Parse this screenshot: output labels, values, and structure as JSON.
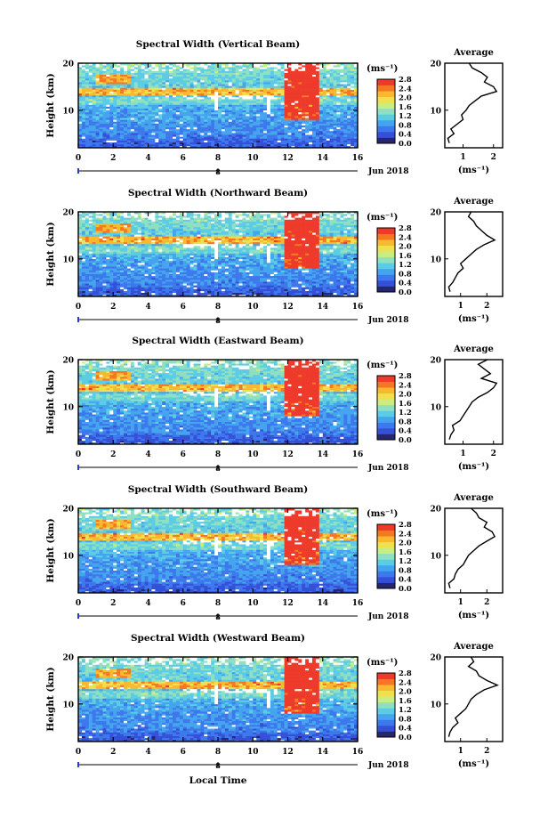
{
  "figure": {
    "unit_label": "(ms⁻¹)",
    "date_label": "Jun 2018",
    "xlabel": "Local Time",
    "avg_title": "Average",
    "ylabel": "Height (km)",
    "sub_tick_label": "8"
  },
  "colors": {
    "colormap": [
      "#26266e",
      "#3550d8",
      "#3d78ec",
      "#45a4ee",
      "#5ccce6",
      "#8fe0c0",
      "#c8ee82",
      "#f0e050",
      "#f8b830",
      "#f47824",
      "#ee3a2a"
    ],
    "saturation": "#ee3a2a",
    "no_data": "#ffffff"
  },
  "chart_data": [
    {
      "type": "heatmap",
      "title": "Spectral Width (Vertical Beam)",
      "x_ticks": [
        "0",
        "2",
        "4",
        "6",
        "8",
        "10",
        "12",
        "14",
        "16"
      ],
      "y_ticks": [
        "10",
        "20"
      ],
      "xlim": [
        0,
        16
      ],
      "ylim": [
        2,
        20
      ],
      "colorbar": {
        "ticks": [
          "2.8",
          "2.4",
          "2.0",
          "1.6",
          "1.2",
          "0.8",
          "0.4",
          "0.0"
        ],
        "range": [
          0,
          2.8
        ]
      },
      "average": {
        "x_ticks": [
          "1",
          "2"
        ],
        "xlim": [
          0.4,
          2.3
        ],
        "height": [
          3,
          4,
          5,
          6,
          7,
          8,
          9,
          10,
          11,
          12,
          13,
          14,
          15,
          16,
          17,
          18,
          19,
          20
        ],
        "value": [
          0.55,
          0.5,
          0.7,
          0.6,
          0.8,
          1.0,
          0.95,
          1.1,
          1.2,
          1.4,
          1.6,
          2.1,
          2.0,
          1.7,
          1.8,
          1.6,
          1.3,
          1.2
        ]
      }
    },
    {
      "type": "heatmap",
      "title": "Spectral Width (Northward Beam)",
      "x_ticks": [
        "0",
        "2",
        "4",
        "6",
        "8",
        "10",
        "12",
        "14",
        "16"
      ],
      "y_ticks": [
        "10",
        "20"
      ],
      "xlim": [
        0,
        16
      ],
      "ylim": [
        2,
        20
      ],
      "colorbar": {
        "ticks": [
          "2.8",
          "2.4",
          "2.0",
          "1.6",
          "1.2",
          "0.8",
          "0.4",
          "0.0"
        ],
        "range": [
          0,
          2.8
        ]
      },
      "average": {
        "x_ticks": [
          "1",
          "2"
        ],
        "xlim": [
          0.4,
          2.6
        ],
        "height": [
          3,
          4,
          5,
          6,
          7,
          8,
          9,
          10,
          11,
          12,
          13,
          14,
          15,
          16,
          17,
          18,
          19,
          20
        ],
        "value": [
          0.6,
          0.55,
          0.7,
          0.8,
          0.9,
          1.1,
          1.0,
          1.2,
          1.4,
          1.6,
          1.9,
          2.3,
          2.0,
          1.8,
          1.6,
          1.5,
          1.3,
          1.4
        ]
      }
    },
    {
      "type": "heatmap",
      "title": "Spectral Width (Eastward Beam)",
      "x_ticks": [
        "0",
        "2",
        "4",
        "6",
        "8",
        "10",
        "12",
        "14",
        "16"
      ],
      "y_ticks": [
        "10",
        "20"
      ],
      "xlim": [
        0,
        16
      ],
      "ylim": [
        2,
        20
      ],
      "colorbar": {
        "ticks": [
          "2.8",
          "2.4",
          "2.0",
          "1.6",
          "1.2",
          "0.8",
          "0.4",
          "0.0"
        ],
        "range": [
          0,
          2.8
        ]
      },
      "average": {
        "x_ticks": [
          "1",
          "2"
        ],
        "xlim": [
          0.4,
          2.3
        ],
        "height": [
          3,
          4,
          5,
          6,
          7,
          8,
          9,
          10,
          11,
          12,
          13,
          14,
          15,
          16,
          17,
          18,
          19,
          20
        ],
        "value": [
          0.55,
          0.6,
          0.7,
          0.65,
          0.9,
          1.0,
          1.1,
          1.2,
          1.3,
          1.5,
          1.8,
          2.0,
          2.1,
          1.6,
          1.9,
          1.7,
          1.5,
          1.8
        ]
      }
    },
    {
      "type": "heatmap",
      "title": "Spectral Width (Southward Beam)",
      "x_ticks": [
        "0",
        "2",
        "4",
        "6",
        "8",
        "10",
        "12",
        "14",
        "16"
      ],
      "y_ticks": [
        "10",
        "20"
      ],
      "xlim": [
        0,
        16
      ],
      "ylim": [
        2,
        20
      ],
      "colorbar": {
        "ticks": [
          "2.8",
          "2.4",
          "2.0",
          "1.6",
          "1.2",
          "0.8",
          "0.4",
          "0.0"
        ],
        "range": [
          0,
          2.8
        ]
      },
      "average": {
        "x_ticks": [
          "1",
          "2"
        ],
        "xlim": [
          0.4,
          2.6
        ],
        "height": [
          3,
          4,
          5,
          6,
          7,
          8,
          9,
          10,
          11,
          12,
          13,
          14,
          15,
          16,
          17,
          18,
          19,
          20
        ],
        "value": [
          0.6,
          0.55,
          0.75,
          0.8,
          0.9,
          1.1,
          1.2,
          1.3,
          1.5,
          1.7,
          2.0,
          2.3,
          2.2,
          1.9,
          2.0,
          1.7,
          1.6,
          1.4
        ]
      }
    },
    {
      "type": "heatmap",
      "title": "Spectral Width (Westward Beam)",
      "x_ticks": [
        "0",
        "2",
        "4",
        "6",
        "8",
        "10",
        "12",
        "14",
        "16"
      ],
      "y_ticks": [
        "10",
        "20"
      ],
      "xlim": [
        0,
        16
      ],
      "ylim": [
        2,
        20
      ],
      "colorbar": {
        "ticks": [
          "2.8",
          "2.4",
          "2.0",
          "1.6",
          "1.2",
          "0.8",
          "0.4",
          "0.0"
        ],
        "range": [
          0,
          2.8
        ]
      },
      "average": {
        "x_ticks": [
          "1",
          "2"
        ],
        "xlim": [
          0.4,
          2.6
        ],
        "height": [
          3,
          4,
          5,
          6,
          7,
          8,
          9,
          10,
          11,
          12,
          13,
          14,
          15,
          16,
          17,
          18,
          19,
          20
        ],
        "value": [
          0.55,
          0.6,
          0.7,
          0.9,
          0.8,
          1.0,
          1.2,
          1.3,
          1.4,
          1.6,
          1.9,
          2.4,
          2.0,
          1.7,
          1.6,
          1.3,
          1.5,
          1.4
        ]
      }
    }
  ]
}
